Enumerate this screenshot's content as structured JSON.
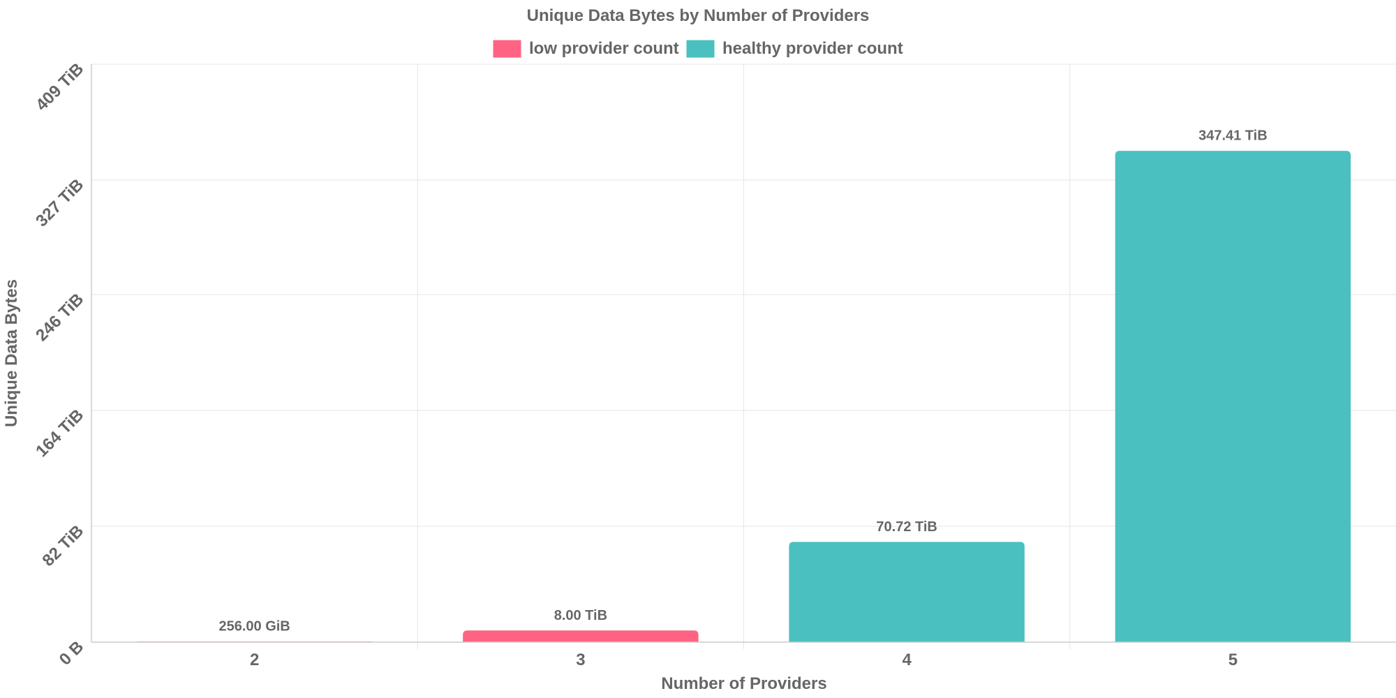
{
  "chart_data": {
    "type": "bar",
    "title": "Unique Data Bytes by Number of Providers",
    "xlabel": "Number of Providers",
    "ylabel": "Unique Data Bytes",
    "unit": "TiB",
    "categories": [
      "2",
      "3",
      "4",
      "5"
    ],
    "values": [
      0.25,
      8.0,
      70.72,
      347.41
    ],
    "data_labels": [
      "256.00 GiB",
      "8.00 TiB",
      "70.72 TiB",
      "347.41 TiB"
    ],
    "bar_series": [
      "low provider count",
      "low provider count",
      "healthy provider count",
      "healthy provider count"
    ],
    "ylim": [
      0,
      409
    ],
    "yticks": [
      0,
      82,
      164,
      246,
      327,
      409
    ],
    "ytick_labels": [
      "0 B",
      "82 TiB",
      "164 TiB",
      "246 TiB",
      "327 TiB",
      "409 TiB"
    ],
    "grid": true,
    "legend_position": "top",
    "legend": [
      {
        "name": "low provider count",
        "color": "#ff6384"
      },
      {
        "name": "healthy provider count",
        "color": "#4bc0c0"
      }
    ]
  }
}
